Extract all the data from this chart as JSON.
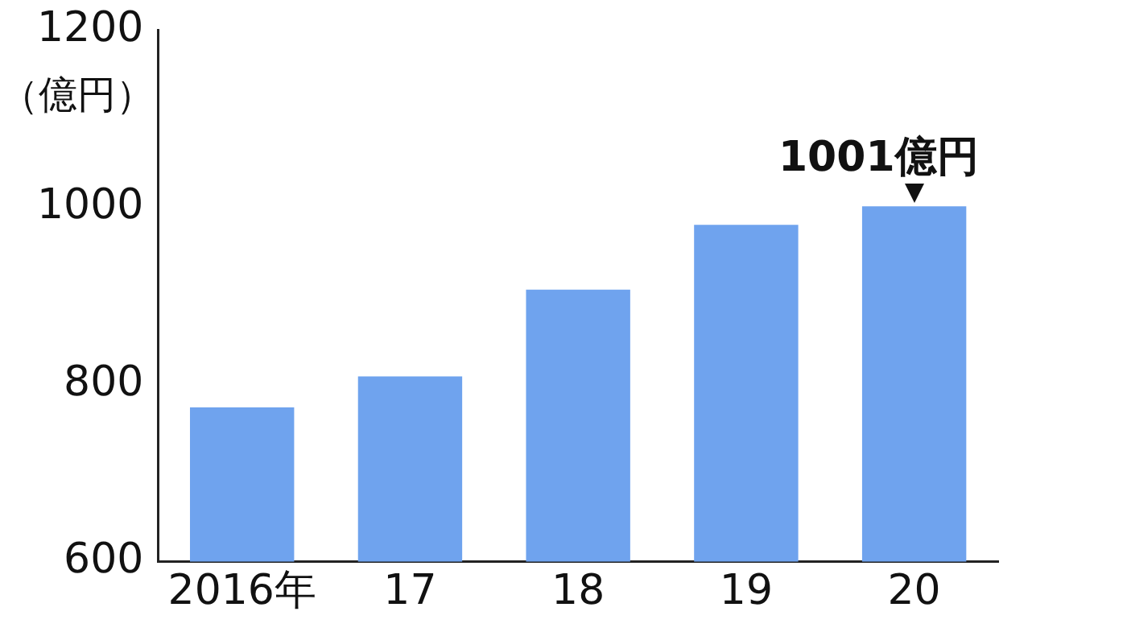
{
  "chart_data": {
    "type": "bar",
    "ylabel": "（億円）",
    "categories": [
      "2016年",
      "17",
      "18",
      "19",
      "20"
    ],
    "values": [
      774,
      809,
      907,
      980,
      1001
    ],
    "color": "#6fa3ee",
    "ylim": [
      600,
      1200
    ],
    "yticks": [
      600,
      800,
      1000,
      1200
    ],
    "grid": false,
    "legend": false,
    "annotations": [
      {
        "text": "1001億円",
        "x": "20",
        "y": 1001
      }
    ]
  }
}
